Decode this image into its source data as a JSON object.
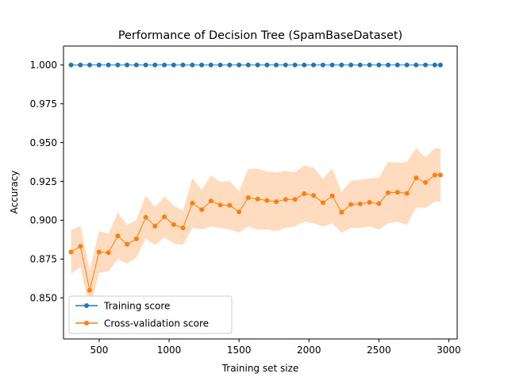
{
  "chart_data": {
    "type": "line",
    "title": "Performance of Decision Tree (SpamBaseDataset)",
    "xlabel": "Training set size",
    "ylabel": "Accuracy",
    "xlim": [
      245,
      3060
    ],
    "ylim": [
      0.8235,
      1.0122
    ],
    "xticks": [
      500,
      1000,
      1500,
      2000,
      2500,
      3000
    ],
    "xtick_labels": [
      "500",
      "1000",
      "1500",
      "2000",
      "2500",
      "3000"
    ],
    "yticks": [
      0.85,
      0.875,
      0.9,
      0.925,
      0.95,
      0.975,
      1.0
    ],
    "ytick_labels": [
      "0.850",
      "0.875",
      "0.900",
      "0.925",
      "0.950",
      "0.975",
      "1.000"
    ],
    "grid": false,
    "legend_position": "lower-left",
    "x": [
      299,
      366,
      432,
      499,
      566,
      633,
      699,
      766,
      833,
      899,
      966,
      1033,
      1099,
      1166,
      1233,
      1299,
      1366,
      1433,
      1500,
      1566,
      1633,
      1700,
      1766,
      1833,
      1900,
      1966,
      2033,
      2100,
      2166,
      2233,
      2300,
      2366,
      2433,
      2500,
      2566,
      2633,
      2700,
      2766,
      2833,
      2900,
      2940
    ],
    "series": [
      {
        "name": "Training score",
        "color": "#1f77b4",
        "values": [
          1.0,
          1.0,
          1.0,
          1.0,
          1.0,
          1.0,
          1.0,
          1.0,
          1.0,
          1.0,
          1.0,
          1.0,
          1.0,
          1.0,
          1.0,
          1.0,
          1.0,
          1.0,
          1.0,
          1.0,
          1.0,
          1.0,
          1.0,
          1.0,
          1.0,
          1.0,
          1.0,
          1.0,
          1.0,
          1.0,
          1.0,
          1.0,
          1.0,
          1.0,
          1.0,
          1.0,
          1.0,
          1.0,
          1.0,
          1.0,
          1.0
        ]
      },
      {
        "name": "Cross-validation score",
        "color": "#ff7f0e",
        "band_color": "#ffdcc0",
        "values": [
          0.8795,
          0.8832,
          0.8549,
          0.8795,
          0.8791,
          0.8899,
          0.8845,
          0.888,
          0.9019,
          0.8962,
          0.9022,
          0.8972,
          0.895,
          0.911,
          0.9068,
          0.9124,
          0.9098,
          0.9096,
          0.9053,
          0.9145,
          0.9136,
          0.9127,
          0.9119,
          0.9134,
          0.9134,
          0.9171,
          0.9159,
          0.9113,
          0.9157,
          0.9051,
          0.9102,
          0.9105,
          0.9115,
          0.9107,
          0.9177,
          0.918,
          0.9173,
          0.9272,
          0.9243,
          0.9291,
          0.9291
        ],
        "lower": [
          0.8655,
          0.87,
          0.842,
          0.866,
          0.867,
          0.875,
          0.872,
          0.876,
          0.888,
          0.884,
          0.889,
          0.885,
          0.884,
          0.895,
          0.894,
          0.896,
          0.895,
          0.894,
          0.892,
          0.896,
          0.894,
          0.894,
          0.893,
          0.895,
          0.896,
          0.899,
          0.898,
          0.896,
          0.898,
          0.892,
          0.895,
          0.895,
          0.896,
          0.894,
          0.898,
          0.899,
          0.897,
          0.908,
          0.908,
          0.912,
          0.912
        ],
        "upper": [
          0.8935,
          0.8964,
          0.8678,
          0.893,
          0.8912,
          0.9048,
          0.897,
          0.9,
          0.9158,
          0.9084,
          0.9154,
          0.9094,
          0.906,
          0.927,
          0.9196,
          0.9288,
          0.9246,
          0.9252,
          0.9186,
          0.933,
          0.9332,
          0.9314,
          0.9308,
          0.9318,
          0.9308,
          0.9352,
          0.9338,
          0.9266,
          0.9334,
          0.9182,
          0.9254,
          0.926,
          0.927,
          0.9274,
          0.9374,
          0.937,
          0.9376,
          0.9464,
          0.9406,
          0.9462,
          0.9462
        ]
      }
    ]
  }
}
